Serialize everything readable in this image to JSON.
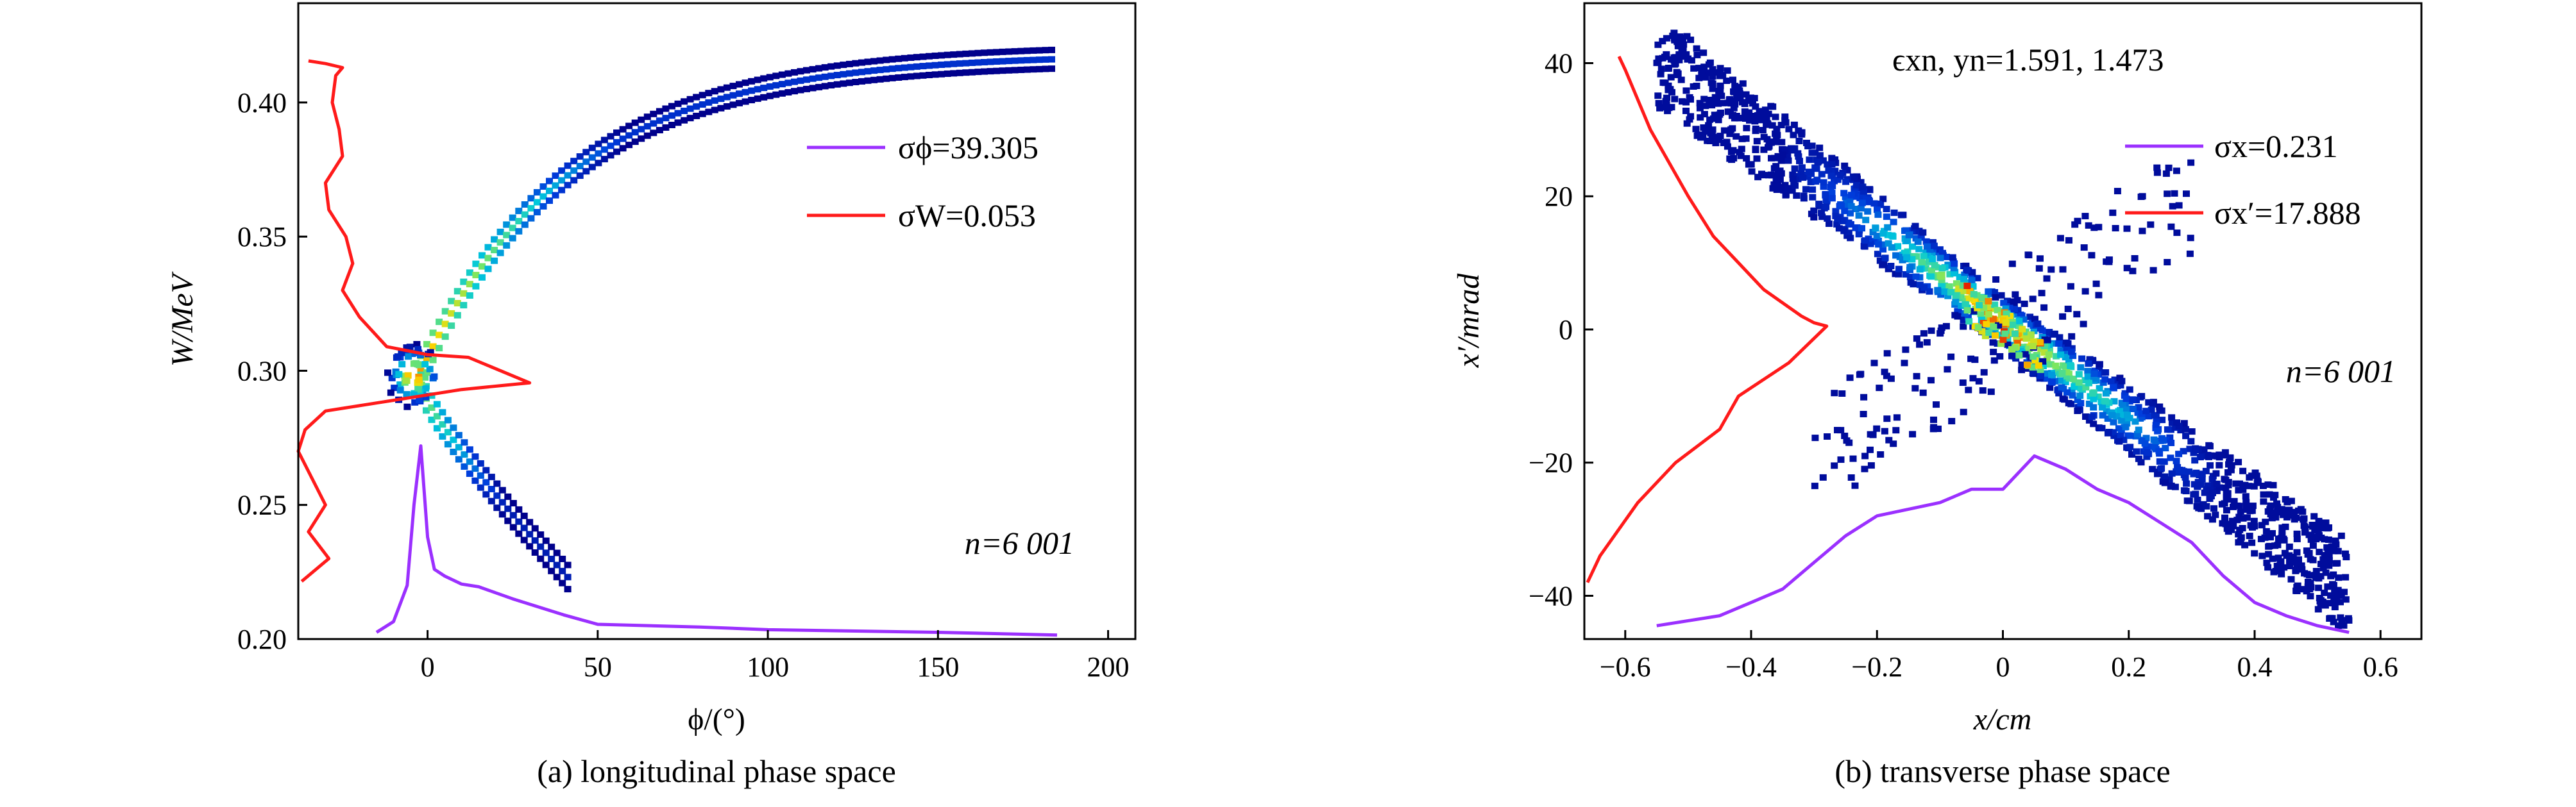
{
  "chart_data": [
    {
      "type": "heatmap",
      "caption": "(a) longitudinal phase space",
      "xlabel": "ϕ/(°)",
      "ylabel": "W/MeV",
      "xlim": [
        -38,
        208
      ],
      "ylim": [
        0.2,
        0.437
      ],
      "xticks": [
        0,
        50,
        100,
        150,
        200
      ],
      "yticks": [
        0.2,
        0.25,
        0.3,
        0.35,
        0.4
      ],
      "ytick_labels": [
        "0.20",
        "0.25",
        "0.30",
        "0.35",
        "0.40"
      ],
      "annotation": "n=6 001",
      "legend_position": "upper-right",
      "series": [
        {
          "name": "σϕ=39.305",
          "color": "#9b30ff",
          "x": [
            -15,
            -10,
            -6,
            -4,
            -2,
            0,
            2,
            5,
            10,
            15,
            25,
            40,
            50,
            80,
            100,
            150,
            185
          ],
          "y": [
            0.2025,
            0.2065,
            0.22,
            0.25,
            0.272,
            0.238,
            0.226,
            0.2235,
            0.2205,
            0.2195,
            0.215,
            0.209,
            0.2055,
            0.2045,
            0.2035,
            0.2025,
            0.2015
          ]
        },
        {
          "name": "σW=0.053",
          "color": "#ff1a1a",
          "x": [
            -35,
            -30,
            -25,
            -27,
            -28,
            -26,
            -25,
            -30,
            -29,
            -24,
            -22,
            -25,
            -20,
            -12,
            0,
            12,
            30,
            10,
            -5,
            -15,
            -30,
            -36,
            -38,
            -34,
            -30,
            -35,
            -29,
            -37
          ],
          "y": [
            0.4155,
            0.4145,
            0.413,
            0.41,
            0.4,
            0.39,
            0.38,
            0.37,
            0.36,
            0.35,
            0.34,
            0.33,
            0.32,
            0.309,
            0.306,
            0.305,
            0.2955,
            0.293,
            0.29,
            0.288,
            0.285,
            0.278,
            0.27,
            0.26,
            0.25,
            0.24,
            0.23,
            0.2215
          ]
        }
      ]
    },
    {
      "type": "heatmap",
      "caption": "(b) transverse phase space",
      "xlabel": "x/cm",
      "ylabel": "x′/mrad",
      "xlim": [
        -0.665,
        0.665
      ],
      "ylim": [
        -46.5,
        49
      ],
      "xticks": [
        -0.6,
        -0.4,
        -0.2,
        0,
        0.2,
        0.4,
        0.6
      ],
      "xtick_labels": [
        "−0.6",
        "−0.4",
        "−0.2",
        "0",
        "0.2",
        "0.4",
        "0.6"
      ],
      "yticks": [
        -40,
        -20,
        0,
        20,
        40
      ],
      "ytick_labels": [
        "−40",
        "−20",
        "0",
        "20",
        "40"
      ],
      "annotation": "n=6 001",
      "title": "ϵxn, yn=1.591, 1.473",
      "legend_position": "upper-right",
      "series": [
        {
          "name": "σx=0.231",
          "color": "#9b30ff",
          "x": [
            -0.55,
            -0.45,
            -0.4,
            -0.35,
            -0.3,
            -0.25,
            -0.2,
            -0.15,
            -0.1,
            -0.05,
            0,
            0.05,
            0.1,
            0.15,
            0.2,
            0.25,
            0.3,
            0.35,
            0.4,
            0.45,
            0.5,
            0.55
          ],
          "y": [
            -44.5,
            -43,
            -41,
            -39,
            -35,
            -31,
            -28,
            -27,
            -26,
            -24,
            -24,
            -19,
            -21,
            -24,
            -26,
            -29,
            -32,
            -37,
            -41,
            -43,
            -44.5,
            -45.5
          ]
        },
        {
          "name": "σx′=17.888",
          "color": "#ff1a1a",
          "x": [
            -0.61,
            -0.6,
            -0.56,
            -0.5,
            -0.46,
            -0.42,
            -0.38,
            -0.32,
            -0.3,
            -0.28,
            -0.34,
            -0.42,
            -0.45,
            -0.52,
            -0.58,
            -0.64,
            -0.66
          ],
          "y": [
            41,
            39,
            30,
            20,
            14,
            10,
            6,
            2,
            1,
            0.5,
            -5,
            -10,
            -15,
            -20,
            -26,
            -34,
            -38
          ]
        }
      ]
    }
  ]
}
